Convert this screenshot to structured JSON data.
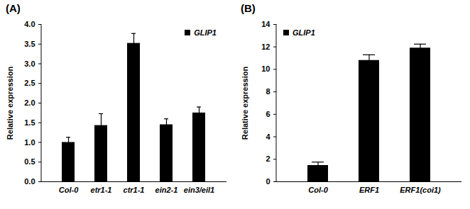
{
  "chart_data": [
    {
      "type": "bar",
      "title": "(A)",
      "y_label": "Relative expression",
      "categories": [
        "Col-0",
        "etr1-1",
        "ctr1-1",
        "ein2-1",
        "ein3/eil1"
      ],
      "series": [
        {
          "name": "GLIP1",
          "color": "#000000",
          "values": [
            1.0,
            1.43,
            3.52,
            1.45,
            1.75
          ],
          "errors": [
            0.13,
            0.3,
            0.25,
            0.15,
            0.15
          ]
        }
      ],
      "ylim": [
        0,
        4
      ],
      "yticks": [
        0,
        0.5,
        1,
        1.5,
        2,
        2.5,
        3,
        3.5,
        4
      ],
      "legend": "top-right"
    },
    {
      "type": "bar",
      "title": "(B)",
      "y_label": "Relative expression",
      "categories": [
        "Col-0",
        "ERF1",
        "ERF1(coi1)"
      ],
      "series": [
        {
          "name": "GLIP1",
          "color": "#000000",
          "values": [
            1.45,
            10.8,
            11.9
          ],
          "errors": [
            0.3,
            0.5,
            0.35
          ]
        }
      ],
      "ylim": [
        0,
        14
      ],
      "yticks": [
        0,
        2,
        4,
        6,
        8,
        10,
        12,
        14
      ],
      "legend": "top-left"
    }
  ]
}
